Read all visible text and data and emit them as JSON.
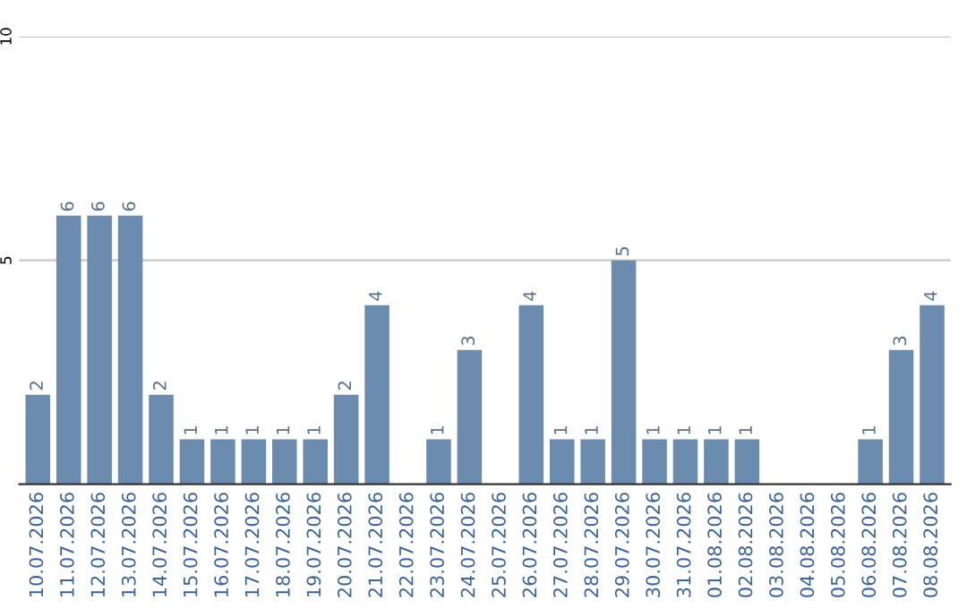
{
  "chart_data": {
    "type": "bar",
    "categories": [
      "10.07.2026",
      "11.07.2026",
      "12.07.2026",
      "13.07.2026",
      "14.07.2026",
      "15.07.2026",
      "16.07.2026",
      "17.07.2026",
      "18.07.2026",
      "19.07.2026",
      "20.07.2026",
      "21.07.2026",
      "22.07.2026",
      "23.07.2026",
      "24.07.2026",
      "25.07.2026",
      "26.07.2026",
      "27.07.2026",
      "28.07.2026",
      "29.07.2026",
      "30.07.2026",
      "31.07.2026",
      "01.08.2026",
      "02.08.2026",
      "03.08.2026",
      "04.08.2026",
      "05.08.2026",
      "06.08.2026",
      "07.08.2026",
      "08.08.2026"
    ],
    "values": [
      2,
      6,
      6,
      6,
      2,
      1,
      1,
      1,
      1,
      1,
      2,
      4,
      0,
      1,
      3,
      0,
      4,
      1,
      1,
      5,
      1,
      1,
      1,
      1,
      0,
      0,
      0,
      1,
      3,
      4
    ],
    "value_labels": [
      "2",
      "6",
      "6",
      "6",
      "2",
      "1",
      "1",
      "1",
      "1",
      "1",
      "2",
      "4",
      null,
      "1",
      "3",
      null,
      "4",
      "1",
      "1",
      "5",
      "1",
      "1",
      "1",
      "1",
      null,
      null,
      null,
      "1",
      "3",
      "4"
    ],
    "color": "#6b8cae",
    "ylim": [
      0,
      10
    ],
    "yticks": [
      5,
      10
    ],
    "grid": "y",
    "legend": false
  }
}
